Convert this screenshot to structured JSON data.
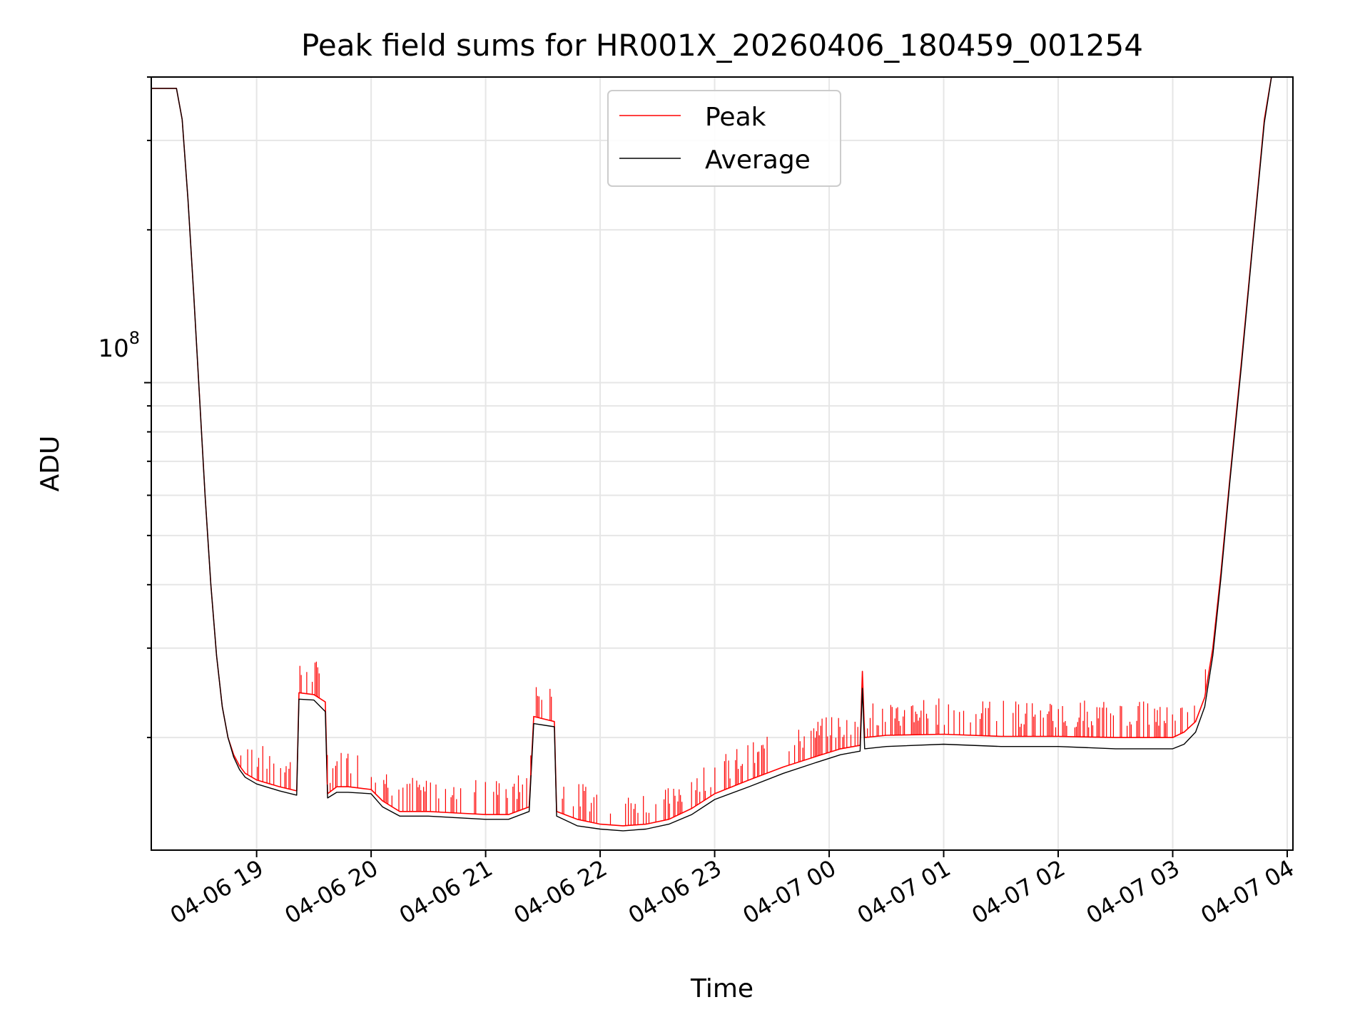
{
  "chart_data": {
    "type": "line",
    "title": "Peak field sums for HR001X_20260406_180459_001254",
    "xlabel": "Time",
    "ylabel": "ADU",
    "yscale": "log",
    "y_tick_label": {
      "base": "10",
      "exponent": "8",
      "value": 100000000
    },
    "x_tick_labels": [
      "04-06 19",
      "04-06 20",
      "04-06 21",
      "04-06 22",
      "04-06 23",
      "04-07 00",
      "04-07 01",
      "04-07 02",
      "04-07 03",
      "04-07 04"
    ],
    "x_ticks_hours": [
      19,
      20,
      21,
      22,
      23,
      24,
      25,
      26,
      27,
      28
    ],
    "xlim_hours": [
      18.08,
      28.05
    ],
    "ylim": [
      12000000,
      400000000
    ],
    "grid": true,
    "legend": {
      "placement": "top-center"
    },
    "series": [
      {
        "name": "Peak",
        "color": "#ff0000",
        "note_spikes": "frequent positive spikes above the average curve",
        "points": [
          [
            18.08,
            380000000
          ],
          [
            18.3,
            380000000
          ],
          [
            18.35,
            330000000
          ],
          [
            18.4,
            230000000
          ],
          [
            18.45,
            150000000
          ],
          [
            18.5,
            95000000
          ],
          [
            18.55,
            60000000
          ],
          [
            18.6,
            40000000
          ],
          [
            18.65,
            29000000
          ],
          [
            18.7,
            23000000
          ],
          [
            18.75,
            20000000
          ],
          [
            18.8,
            18500000
          ],
          [
            18.85,
            17600000
          ],
          [
            18.9,
            17000000
          ],
          [
            19.0,
            16500000
          ],
          [
            19.2,
            16000000
          ],
          [
            19.35,
            15700000
          ],
          [
            19.37,
            24500000
          ],
          [
            19.5,
            24300000
          ],
          [
            19.6,
            23500000
          ],
          [
            19.62,
            15500000
          ],
          [
            19.7,
            16000000
          ],
          [
            19.8,
            16000000
          ],
          [
            20.0,
            15800000
          ],
          [
            20.1,
            15000000
          ],
          [
            20.25,
            14300000
          ],
          [
            20.5,
            14300000
          ],
          [
            20.75,
            14200000
          ],
          [
            21.0,
            14100000
          ],
          [
            21.2,
            14100000
          ],
          [
            21.38,
            14600000
          ],
          [
            21.42,
            22000000
          ],
          [
            21.6,
            21500000
          ],
          [
            21.62,
            14300000
          ],
          [
            21.8,
            13800000
          ],
          [
            22.0,
            13500000
          ],
          [
            22.2,
            13400000
          ],
          [
            22.4,
            13500000
          ],
          [
            22.6,
            13800000
          ],
          [
            22.8,
            14500000
          ],
          [
            23.0,
            15500000
          ],
          [
            23.3,
            16500000
          ],
          [
            23.6,
            17500000
          ],
          [
            23.9,
            18400000
          ],
          [
            24.1,
            19000000
          ],
          [
            24.27,
            19300000
          ],
          [
            24.29,
            27000000
          ],
          [
            24.31,
            20000000
          ],
          [
            24.5,
            20200000
          ],
          [
            25.0,
            20300000
          ],
          [
            25.5,
            20100000
          ],
          [
            26.0,
            20100000
          ],
          [
            26.5,
            20000000
          ],
          [
            27.0,
            20000000
          ],
          [
            27.1,
            20500000
          ],
          [
            27.2,
            21500000
          ],
          [
            27.28,
            24000000
          ],
          [
            27.35,
            30000000
          ],
          [
            27.42,
            42000000
          ],
          [
            27.5,
            65000000
          ],
          [
            27.6,
            110000000
          ],
          [
            27.7,
            190000000
          ],
          [
            27.8,
            330000000
          ],
          [
            27.87,
            410000000
          ],
          [
            28.05,
            420000000
          ]
        ]
      },
      {
        "name": "Average",
        "color": "#000000",
        "points": [
          [
            18.08,
            380000000
          ],
          [
            18.3,
            380000000
          ],
          [
            18.35,
            330000000
          ],
          [
            18.4,
            230000000
          ],
          [
            18.45,
            150000000
          ],
          [
            18.5,
            95000000
          ],
          [
            18.55,
            60000000
          ],
          [
            18.6,
            40000000
          ],
          [
            18.65,
            29000000
          ],
          [
            18.7,
            23000000
          ],
          [
            18.75,
            20000000
          ],
          [
            18.8,
            18300000
          ],
          [
            18.85,
            17300000
          ],
          [
            18.9,
            16700000
          ],
          [
            19.0,
            16200000
          ],
          [
            19.2,
            15700000
          ],
          [
            19.35,
            15400000
          ],
          [
            19.37,
            23800000
          ],
          [
            19.5,
            23700000
          ],
          [
            19.6,
            22500000
          ],
          [
            19.62,
            15200000
          ],
          [
            19.7,
            15600000
          ],
          [
            19.8,
            15600000
          ],
          [
            20.0,
            15500000
          ],
          [
            20.1,
            14600000
          ],
          [
            20.25,
            14000000
          ],
          [
            20.5,
            14000000
          ],
          [
            20.75,
            13900000
          ],
          [
            21.0,
            13800000
          ],
          [
            21.2,
            13800000
          ],
          [
            21.38,
            14300000
          ],
          [
            21.42,
            21300000
          ],
          [
            21.6,
            21000000
          ],
          [
            21.62,
            14000000
          ],
          [
            21.8,
            13400000
          ],
          [
            22.0,
            13200000
          ],
          [
            22.2,
            13100000
          ],
          [
            22.4,
            13200000
          ],
          [
            22.6,
            13500000
          ],
          [
            22.8,
            14100000
          ],
          [
            23.0,
            15100000
          ],
          [
            23.3,
            16000000
          ],
          [
            23.6,
            17000000
          ],
          [
            23.9,
            17900000
          ],
          [
            24.1,
            18500000
          ],
          [
            24.27,
            18800000
          ],
          [
            24.29,
            25000000
          ],
          [
            24.31,
            19000000
          ],
          [
            24.5,
            19200000
          ],
          [
            25.0,
            19400000
          ],
          [
            25.5,
            19200000
          ],
          [
            26.0,
            19200000
          ],
          [
            26.5,
            19000000
          ],
          [
            27.0,
            19000000
          ],
          [
            27.1,
            19400000
          ],
          [
            27.2,
            20500000
          ],
          [
            27.28,
            23000000
          ],
          [
            27.35,
            29000000
          ],
          [
            27.42,
            41000000
          ],
          [
            27.5,
            64000000
          ],
          [
            27.6,
            108000000
          ],
          [
            27.7,
            188000000
          ],
          [
            27.8,
            325000000
          ],
          [
            27.87,
            410000000
          ],
          [
            28.05,
            420000000
          ]
        ]
      }
    ]
  }
}
